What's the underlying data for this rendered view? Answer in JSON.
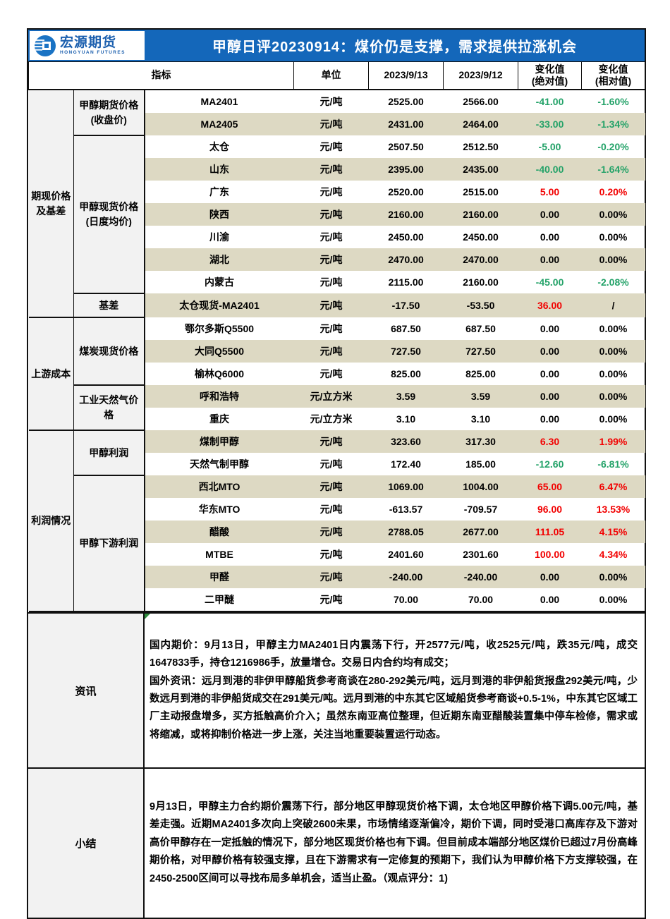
{
  "colors": {
    "header_blue": "#1467ba",
    "stripe_beige": "#ddd9c3",
    "label_gray": "#f2f2f2",
    "positive_red": "#f javiera00",
    "red": "#f20000",
    "green": "#23a268"
  },
  "header": {
    "logo_cn": "宏源期货",
    "logo_en": "HONGYUAN FUTURES",
    "title": "甲醇日评20230914：煤价仍是支撑，需求提供拉涨机会"
  },
  "table": {
    "columns": {
      "indicator": "指标",
      "unit": "单位",
      "date1": "2023/9/13",
      "date2": "2023/9/12",
      "chg_abs_l1": "变化值",
      "chg_abs_l2": "(绝对值)",
      "chg_rel_l1": "变化值",
      "chg_rel_l2": "(相对值)"
    },
    "groups": [
      {
        "label": "期现价格\n及基差",
        "subgroups": [
          {
            "label": "甲醇期货价格\n(收盘价)",
            "rows": [
              {
                "indicator": "MA2401",
                "unit": "元/吨",
                "v1": "2525.00",
                "v2": "2566.00",
                "chg": "-41.00",
                "pct": "-1.60%"
              },
              {
                "indicator": "MA2405",
                "unit": "元/吨",
                "v1": "2431.00",
                "v2": "2464.00",
                "chg": "-33.00",
                "pct": "-1.34%"
              }
            ]
          },
          {
            "label": "甲醇现货价格\n(日度均价)",
            "rows": [
              {
                "indicator": "太仓",
                "unit": "元/吨",
                "v1": "2507.50",
                "v2": "2512.50",
                "chg": "-5.00",
                "pct": "-0.20%"
              },
              {
                "indicator": "山东",
                "unit": "元/吨",
                "v1": "2395.00",
                "v2": "2435.00",
                "chg": "-40.00",
                "pct": "-1.64%"
              },
              {
                "indicator": "广东",
                "unit": "元/吨",
                "v1": "2520.00",
                "v2": "2515.00",
                "chg": "5.00",
                "pct": "0.20%"
              },
              {
                "indicator": "陕西",
                "unit": "元/吨",
                "v1": "2160.00",
                "v2": "2160.00",
                "chg": "0.00",
                "pct": "0.00%"
              },
              {
                "indicator": "川渝",
                "unit": "元/吨",
                "v1": "2450.00",
                "v2": "2450.00",
                "chg": "0.00",
                "pct": "0.00%"
              },
              {
                "indicator": "湖北",
                "unit": "元/吨",
                "v1": "2470.00",
                "v2": "2470.00",
                "chg": "0.00",
                "pct": "0.00%"
              },
              {
                "indicator": "内蒙古",
                "unit": "元/吨",
                "v1": "2115.00",
                "v2": "2160.00",
                "chg": "-45.00",
                "pct": "-2.08%"
              }
            ]
          },
          {
            "label": "基差",
            "rows": [
              {
                "indicator": "太仓现货-MA2401",
                "unit": "元/吨",
                "v1": "-17.50",
                "v2": "-53.50",
                "chg": "36.00",
                "pct": "/"
              }
            ]
          }
        ]
      },
      {
        "label": "上游成本",
        "subgroups": [
          {
            "label": "煤炭现货价格",
            "rows": [
              {
                "indicator": "鄂尔多斯Q5500",
                "unit": "元/吨",
                "v1": "687.50",
                "v2": "687.50",
                "chg": "0.00",
                "pct": "0.00%"
              },
              {
                "indicator": "大同Q5500",
                "unit": "元/吨",
                "v1": "727.50",
                "v2": "727.50",
                "chg": "0.00",
                "pct": "0.00%"
              },
              {
                "indicator": "榆林Q6000",
                "unit": "元/吨",
                "v1": "825.00",
                "v2": "825.00",
                "chg": "0.00",
                "pct": "0.00%"
              }
            ]
          },
          {
            "label": "工业天然气价格",
            "rows": [
              {
                "indicator": "呼和浩特",
                "unit": "元/立方米",
                "v1": "3.59",
                "v2": "3.59",
                "chg": "0.00",
                "pct": "0.00%"
              },
              {
                "indicator": "重庆",
                "unit": "元/立方米",
                "v1": "3.10",
                "v2": "3.10",
                "chg": "0.00",
                "pct": "0.00%"
              }
            ]
          }
        ]
      },
      {
        "label": "利润情况",
        "subgroups": [
          {
            "label": "甲醇利润",
            "rows": [
              {
                "indicator": "煤制甲醇",
                "unit": "元/吨",
                "v1": "323.60",
                "v2": "317.30",
                "chg": "6.30",
                "pct": "1.99%"
              },
              {
                "indicator": "天然气制甲醇",
                "unit": "元/吨",
                "v1": "172.40",
                "v2": "185.00",
                "chg": "-12.60",
                "pct": "-6.81%"
              }
            ]
          },
          {
            "label": "甲醇下游利润",
            "rows": [
              {
                "indicator": "西北MTO",
                "unit": "元/吨",
                "v1": "1069.00",
                "v2": "1004.00",
                "chg": "65.00",
                "pct": "6.47%"
              },
              {
                "indicator": "华东MTO",
                "unit": "元/吨",
                "v1": "-613.57",
                "v2": "-709.57",
                "chg": "96.00",
                "pct": "13.53%"
              },
              {
                "indicator": "醋酸",
                "unit": "元/吨",
                "v1": "2788.05",
                "v2": "2677.00",
                "chg": "111.05",
                "pct": "4.15%"
              },
              {
                "indicator": "MTBE",
                "unit": "元/吨",
                "v1": "2401.60",
                "v2": "2301.60",
                "chg": "100.00",
                "pct": "4.34%"
              },
              {
                "indicator": "甲醛",
                "unit": "元/吨",
                "v1": "-240.00",
                "v2": "-240.00",
                "chg": "0.00",
                "pct": "0.00%"
              },
              {
                "indicator": "二甲醚",
                "unit": "元/吨",
                "v1": "70.00",
                "v2": "70.00",
                "chg": "0.00",
                "pct": "0.00%"
              }
            ]
          }
        ]
      }
    ]
  },
  "sections": {
    "news": {
      "label": "资讯",
      "paragraphs": [
        "国内期价：9月13日，甲醇主力MA2401日内震荡下行，开2577元/吨，收2525元/吨，跌35元/吨，成交1647833手，持仓1216986手，放量增仓。交易日内合约均有成交；",
        "国外资讯：远月到港的非伊甲醇船货参考商谈在280-292美元/吨，远月到港的非伊船货报盘292美元/吨，少数远月到港的非伊船货成交在291美元/吨。远月到港的中东其它区域船货参考商谈+0.5-1%，中东其它区域工厂主动报盘增多，买方抵触高价介入；虽然东南亚高位整理，但近期东南亚醋酸装置集中停车检修，需求或将缩减，或将抑制价格进一步上涨，关注当地重要装置运行动态。"
      ]
    },
    "summary": {
      "label": "小结",
      "text": "9月13日，甲醇主力合约期价震荡下行，部分地区甲醇现货价格下调，太仓地区甲醇价格下调5.00元/吨，基差走强。近期MA2401多次向上突破2600未果，市场情绪逐渐偏冷，期价下调，同时受港口高库存及下游对高价甲醇存在一定抵触的情况下，部分地区现货价格也有下调。但目前成本端部分地区煤价已超过7月份高峰期价格，对甲醇价格有较强支撑，且在下游需求有一定修复的预期下，我们认为甲醇价格下方支撑较强，在2450-2500区间可以寻找布局多单机会，适当止盈。（观点评分：1)"
    }
  }
}
